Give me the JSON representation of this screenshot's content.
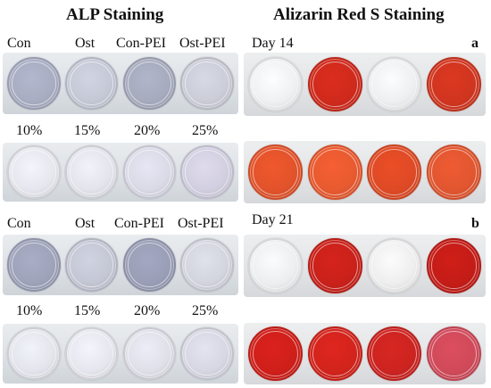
{
  "titles": {
    "alp": "ALP Staining",
    "alizarin": "Alizarin Red S Staining"
  },
  "panel_a": {
    "letter": "a",
    "day_label": "Day 14",
    "group_labels": [
      "Con",
      "Ost",
      "Con-PEI",
      "Ost-PEI"
    ],
    "conc_labels": [
      "10%",
      "15%",
      "20%",
      "25%"
    ]
  },
  "panel_b": {
    "letter": "b",
    "day_label": "Day 21",
    "group_labels": [
      "Con",
      "Ost",
      "Con-PEI",
      "Ost-PEI"
    ],
    "conc_labels": [
      "10%",
      "15%",
      "20%",
      "25%"
    ]
  },
  "stain_colors": {
    "alp_a_row1": [
      "#a9adc2",
      "#c5c9d6",
      "#a7abbe",
      "#cbcdd8"
    ],
    "alp_a_row2": [
      "#e6e7ee",
      "#e3e4ec",
      "#d9dae6",
      "#d2cfe0"
    ],
    "ars_a_row1": [
      "#eef0f1",
      "#cf2a1c",
      "#eeeff0",
      "#d0351f"
    ],
    "ars_a_row2": [
      "#e2532b",
      "#e85a30",
      "#de4a25",
      "#e15630"
    ],
    "alp_b_row1": [
      "#9fa3ba",
      "#c4c7d4",
      "#9a9eb6",
      "#d3d5de"
    ],
    "alp_b_row2": [
      "#e3e5ec",
      "#e6e7ee",
      "#dfe0e8",
      "#d6d7e2"
    ],
    "ars_b_row1": [
      "#eceeef",
      "#c9211a",
      "#eeeeef",
      "#c41c17"
    ],
    "ars_b_row2": [
      "#cf1f1a",
      "#d2241c",
      "#cc2420",
      "#d04a5a"
    ]
  }
}
